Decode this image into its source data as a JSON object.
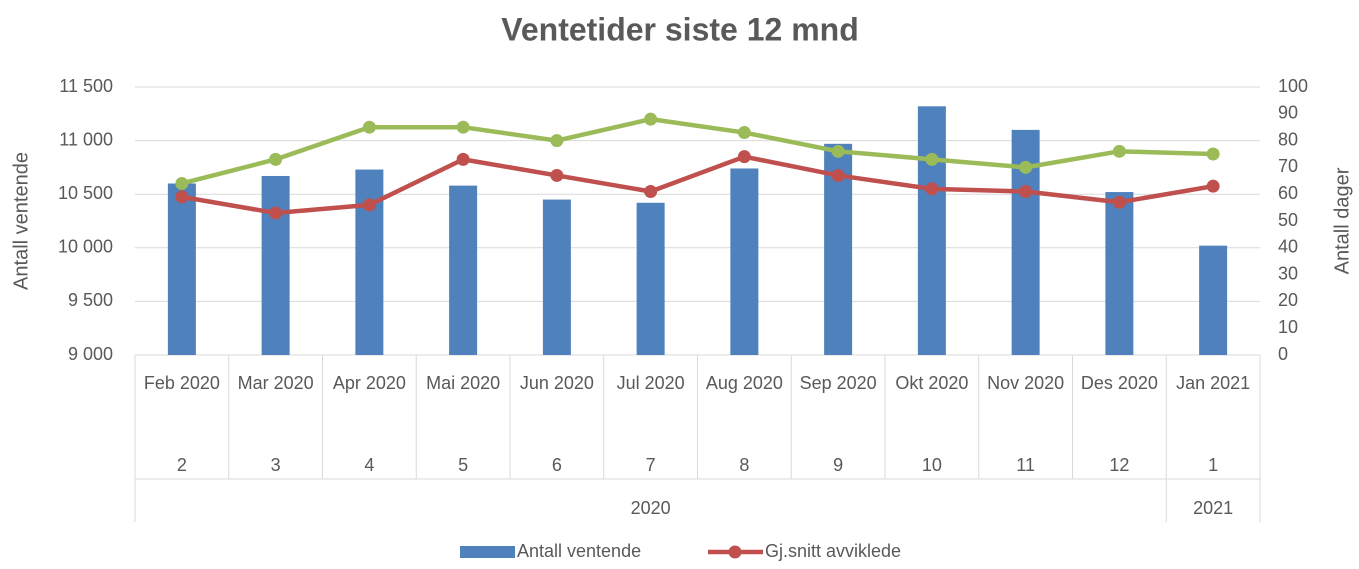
{
  "chart_data": {
    "type": "bar-line",
    "title": "Ventetider siste 12 mnd",
    "y_label": "Antall ventende",
    "y2_label": "Antall dager",
    "categories": [
      "Feb 2020",
      "Mar 2020",
      "Apr 2020",
      "Mai 2020",
      "Jun 2020",
      "Jul 2020",
      "Aug 2020",
      "Sep 2020",
      "Okt 2020",
      "Nov 2020",
      "Des 2020",
      "Jan 2021"
    ],
    "month_numbers": [
      2,
      3,
      4,
      5,
      6,
      7,
      8,
      9,
      10,
      11,
      12,
      1
    ],
    "year_groups": [
      {
        "label": "2020",
        "categories": 11
      },
      {
        "label": "2021",
        "categories": 1
      }
    ],
    "series": [
      {
        "name": "Antall ventende",
        "type": "bar",
        "color": "#4f81bd",
        "values": [
          10600,
          10670,
          10730,
          10580,
          10450,
          10420,
          10740,
          10970,
          11320,
          11100,
          10520,
          10020
        ]
      },
      {
        "name": "Gj.snitt avviklede",
        "type": "line",
        "axis": "y2",
        "color": "#c0504d",
        "values": [
          59,
          53,
          56,
          73,
          67,
          61,
          74,
          67,
          62,
          61,
          57,
          63
        ]
      },
      {
        "type": "line",
        "axis": "y2",
        "color": "#9bbb59",
        "values": [
          64,
          73,
          85,
          85,
          80,
          88,
          83,
          76,
          73,
          70,
          76,
          75
        ]
      }
    ],
    "ylim": [
      9000,
      11500
    ],
    "yticks": [
      {
        "value": 9000,
        "label": "9 000"
      },
      {
        "value": 9500,
        "label": "9 500"
      },
      {
        "value": 10000,
        "label": "10 000"
      },
      {
        "value": 10500,
        "label": "10 500"
      },
      {
        "value": 11000,
        "label": "11 000"
      },
      {
        "value": 11500,
        "label": "11 500"
      }
    ],
    "y2lim": [
      0,
      100
    ],
    "y2ticks": [
      0,
      10,
      20,
      30,
      40,
      50,
      60,
      70,
      80,
      90,
      100
    ],
    "grid": true,
    "legend": "bottom"
  }
}
